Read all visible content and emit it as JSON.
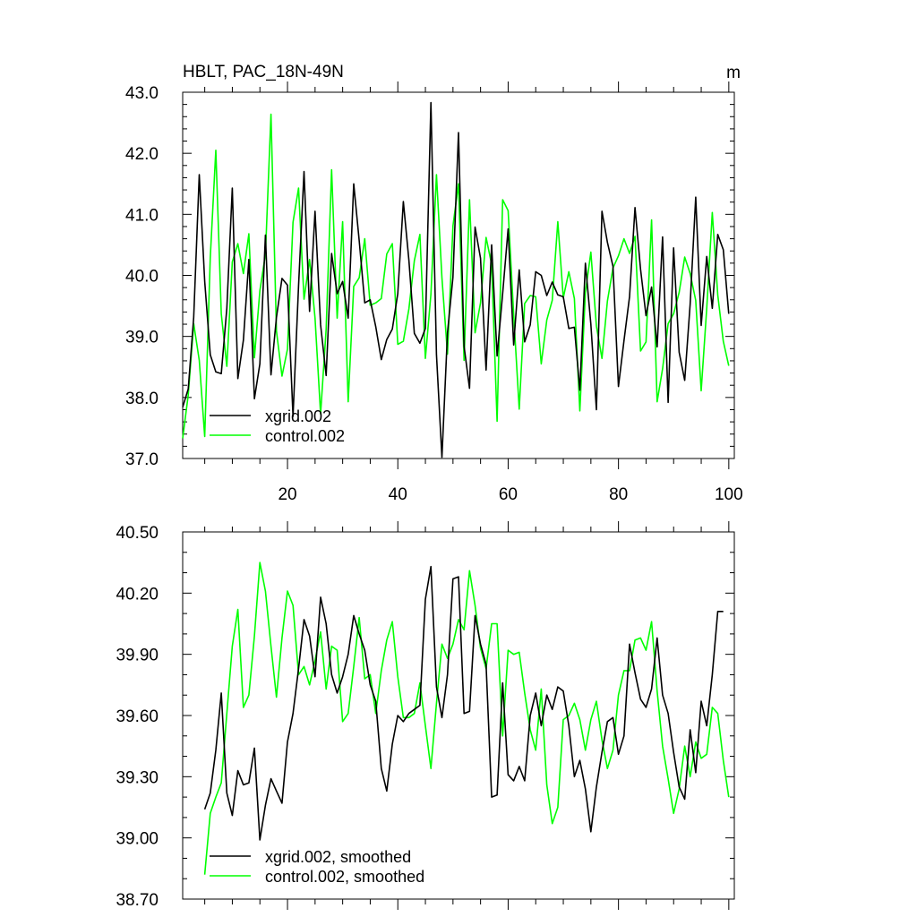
{
  "chart_data": [
    {
      "type": "line",
      "title": "HBLT, PAC_18N-49N",
      "units": "m",
      "xlim": [
        1,
        101
      ],
      "ylim": [
        37.0,
        43.0
      ],
      "x_ticks": [
        "20",
        "40",
        "60",
        "80",
        "100"
      ],
      "y_ticks": [
        "37.0",
        "38.0",
        "39.0",
        "40.0",
        "41.0",
        "42.0",
        "43.0"
      ],
      "series": [
        {
          "name": "xgrid.002",
          "color": "#000000",
          "x_start": 1,
          "values": [
            37.84,
            38.14,
            39.31,
            41.65,
            39.9,
            38.7,
            38.42,
            38.39,
            39.46,
            41.43,
            38.31,
            38.94,
            40.26,
            37.98,
            38.55,
            40.66,
            38.37,
            39.31,
            39.95,
            39.84,
            37.69,
            39.83,
            41.7,
            39.41,
            41.05,
            39.19,
            38.36,
            40.36,
            39.7,
            39.9,
            39.3,
            41.5,
            40.57,
            39.55,
            39.6,
            39.16,
            38.62,
            38.95,
            39.12,
            39.7,
            41.21,
            40.25,
            39.05,
            38.89,
            39.13,
            42.83,
            38.7,
            37.02,
            39.06,
            39.97,
            42.34,
            38.84,
            38.15,
            40.79,
            40.28,
            38.45,
            40.5,
            38.68,
            39.7,
            40.76,
            38.86,
            40.09,
            38.91,
            39.19,
            40.06,
            40.0,
            39.67,
            39.89,
            39.68,
            39.65,
            39.13,
            39.15,
            38.12,
            40.2,
            39.2,
            37.8,
            41.05,
            40.54,
            40.15,
            38.18,
            38.93,
            39.65,
            41.11,
            40.1,
            39.34,
            39.81,
            38.83,
            40.63,
            37.92,
            40.45,
            38.74,
            38.28,
            39.53,
            41.28,
            39.18,
            40.31,
            39.46,
            40.67,
            40.42,
            39.37
          ]
        },
        {
          "name": "control.002",
          "color": "#00ff00",
          "x_start": 1,
          "values": [
            37.33,
            38.04,
            39.21,
            38.61,
            37.36,
            40.29,
            42.05,
            39.37,
            38.51,
            40.22,
            40.52,
            40.03,
            40.68,
            38.65,
            39.75,
            40.34,
            42.64,
            39.09,
            38.35,
            38.79,
            40.87,
            41.43,
            39.61,
            40.26,
            39.3,
            37.73,
            39.12,
            41.73,
            39.3,
            40.88,
            37.93,
            39.82,
            39.96,
            40.6,
            39.51,
            39.55,
            39.62,
            40.35,
            40.52,
            38.87,
            38.92,
            39.45,
            40.24,
            40.67,
            38.64,
            39.69,
            41.65,
            39.96,
            38.71,
            40.81,
            41.5,
            38.61,
            41.24,
            39.06,
            39.55,
            40.62,
            40.18,
            37.61,
            41.24,
            41.06,
            39.36,
            37.81,
            39.54,
            39.67,
            39.65,
            38.55,
            39.27,
            39.59,
            40.88,
            39.63,
            40.06,
            39.62,
            37.78,
            39.72,
            40.38,
            39.17,
            38.64,
            39.58,
            40.12,
            40.32,
            40.6,
            40.36,
            40.64,
            38.76,
            38.91,
            40.91,
            37.93,
            38.47,
            39.21,
            39.37,
            39.72,
            40.3,
            40.03,
            39.59,
            38.11,
            39.46,
            41.03,
            39.68,
            38.92,
            38.52
          ]
        }
      ]
    },
    {
      "type": "line",
      "xlim": [
        1,
        101
      ],
      "ylim": [
        38.7,
        40.5
      ],
      "x_ticks": [
        "20",
        "40",
        "60",
        "80",
        "100"
      ],
      "y_ticks": [
        "38.70",
        "39.00",
        "39.30",
        "39.60",
        "39.90",
        "40.20",
        "40.50"
      ],
      "series": [
        {
          "name": "xgrid.002, smoothed",
          "color": "#000000",
          "x_start": 5,
          "values": [
            39.14,
            39.22,
            39.43,
            39.71,
            39.22,
            39.11,
            39.33,
            39.26,
            39.27,
            39.44,
            38.99,
            39.16,
            39.29,
            39.23,
            39.17,
            39.47,
            39.61,
            39.83,
            40.07,
            39.99,
            39.79,
            40.18,
            40.05,
            39.8,
            39.71,
            39.79,
            39.9,
            40.09,
            40.0,
            39.92,
            39.75,
            39.67,
            39.34,
            39.23,
            39.46,
            39.6,
            39.57,
            39.61,
            39.63,
            39.65,
            40.17,
            40.33,
            39.74,
            39.59,
            39.8,
            40.27,
            40.28,
            39.61,
            39.62,
            40.09,
            39.95,
            39.85,
            39.2,
            39.21,
            39.76,
            39.31,
            39.28,
            39.35,
            39.28,
            39.6,
            39.71,
            39.55,
            39.7,
            39.63,
            39.74,
            39.72,
            39.55,
            39.3,
            39.38,
            39.24,
            39.03,
            39.25,
            39.42,
            39.57,
            39.59,
            39.41,
            39.5,
            39.95,
            39.81,
            39.68,
            39.64,
            39.73,
            39.98,
            39.7,
            39.61,
            39.42,
            39.25,
            39.19,
            39.53,
            39.32,
            39.67,
            39.55,
            39.8,
            40.11,
            40.11
          ]
        },
        {
          "name": "control.002, smoothed",
          "color": "#00ff00",
          "x_start": 5,
          "values": [
            38.82,
            39.12,
            39.2,
            39.27,
            39.61,
            39.94,
            40.12,
            39.64,
            39.7,
            39.99,
            40.35,
            40.21,
            39.94,
            39.69,
            39.98,
            40.21,
            40.14,
            39.8,
            39.84,
            39.75,
            39.87,
            40.01,
            39.73,
            39.94,
            39.92,
            39.57,
            39.61,
            39.84,
            40.08,
            39.78,
            39.8,
            39.61,
            39.82,
            39.97,
            40.06,
            39.79,
            39.59,
            39.59,
            39.61,
            39.76,
            39.55,
            39.34,
            39.66,
            39.95,
            39.88,
            39.95,
            40.07,
            40.02,
            40.31,
            40.14,
            39.93,
            39.83,
            40.05,
            40.05,
            39.5,
            39.92,
            39.9,
            39.91,
            39.71,
            39.53,
            39.43,
            39.73,
            39.26,
            39.07,
            39.15,
            39.58,
            39.6,
            39.66,
            39.58,
            39.43,
            39.58,
            39.67,
            39.48,
            39.34,
            39.43,
            39.7,
            39.82,
            39.82,
            39.97,
            39.98,
            39.92,
            40.06,
            39.72,
            39.45,
            39.29,
            39.12,
            39.24,
            39.45,
            39.3,
            39.47,
            39.39,
            39.41,
            39.64,
            39.61,
            39.38,
            39.2
          ]
        }
      ]
    }
  ]
}
